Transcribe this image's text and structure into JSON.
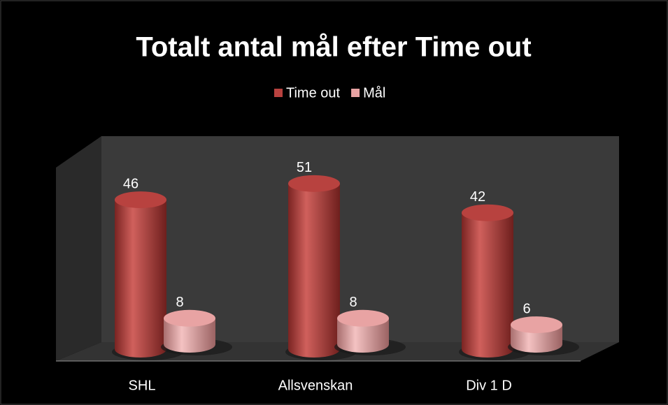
{
  "chart_data": {
    "type": "bar3d",
    "title": "Totalt antal mål efter Time out",
    "categories": [
      "SHL",
      "Allsvenskan",
      "Div 1 D"
    ],
    "series": [
      {
        "name": "Time out",
        "color": "#b8423f",
        "values": [
          46,
          51,
          42
        ]
      },
      {
        "name": "Mål",
        "color": "#e8a3a3",
        "values": [
          8,
          8,
          6
        ]
      }
    ],
    "legend": "top"
  }
}
